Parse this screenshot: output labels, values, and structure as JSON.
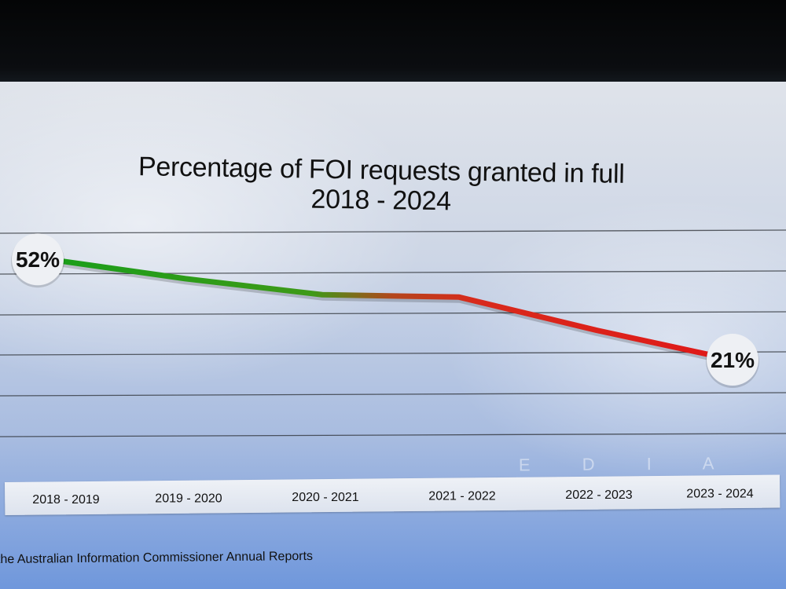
{
  "chart_data": {
    "type": "line",
    "title": "Percentage of FOI requests granted in full",
    "subtitle": "2018 - 2024",
    "categories": [
      "2018 - 2019",
      "2019 - 2020",
      "2020 - 2021",
      "2021 - 2022",
      "2022 - 2023",
      "2023 - 2024"
    ],
    "series": [
      {
        "values": [
          52,
          46,
          41,
          40,
          30,
          21
        ]
      }
    ],
    "data_labels": [
      "52%",
      "",
      "",
      "",
      "",
      "21%"
    ],
    "ylim": [
      0,
      60
    ],
    "grid": true,
    "colors": {
      "start": "#1a9e1a",
      "end": "#e01818"
    }
  },
  "footer": {
    "source": "the Australian Information Commissioner Annual Reports",
    "watermark": "E D I A   W A T C"
  }
}
